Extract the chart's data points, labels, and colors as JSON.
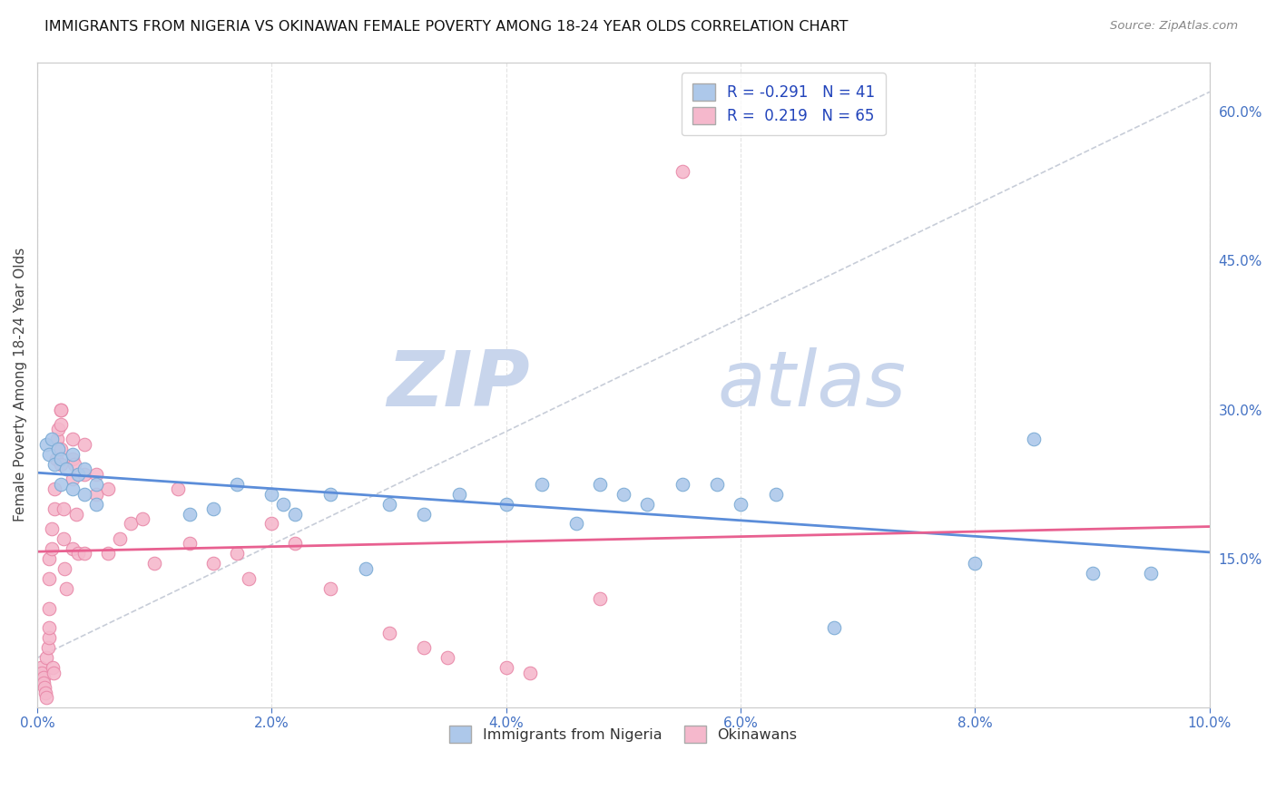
{
  "title": "IMMIGRANTS FROM NIGERIA VS OKINAWAN FEMALE POVERTY AMONG 18-24 YEAR OLDS CORRELATION CHART",
  "source": "Source: ZipAtlas.com",
  "ylabel": "Female Poverty Among 18-24 Year Olds",
  "right_yticks": [
    0.15,
    0.3,
    0.45,
    0.6
  ],
  "right_yticklabels": [
    "15.0%",
    "30.0%",
    "45.0%",
    "60.0%"
  ],
  "xmin": 0.0,
  "xmax": 0.1,
  "ymin": 0.0,
  "ymax": 0.65,
  "blue_R": -0.291,
  "blue_N": 41,
  "pink_R": 0.219,
  "pink_N": 65,
  "blue_color": "#adc8ea",
  "blue_edge": "#7aaad4",
  "blue_line_color": "#5b8dd9",
  "pink_color": "#f5b8cc",
  "pink_edge": "#e888a8",
  "pink_line_color": "#e86090",
  "watermark_zip": "ZIP",
  "watermark_atlas": "atlas",
  "watermark_color": "#ccd9f0",
  "bg_color": "#ffffff",
  "grid_color": "#dddddd",
  "legend_blue_label": "Immigrants from Nigeria",
  "legend_pink_label": "Okinawans",
  "blue_scatter_x": [
    0.0008,
    0.001,
    0.0012,
    0.0015,
    0.0018,
    0.002,
    0.002,
    0.0025,
    0.003,
    0.003,
    0.0035,
    0.004,
    0.004,
    0.005,
    0.005,
    0.013,
    0.015,
    0.017,
    0.02,
    0.021,
    0.022,
    0.025,
    0.028,
    0.03,
    0.033,
    0.036,
    0.04,
    0.043,
    0.046,
    0.048,
    0.05,
    0.052,
    0.055,
    0.058,
    0.06,
    0.063,
    0.068,
    0.08,
    0.085,
    0.09,
    0.095
  ],
  "blue_scatter_y": [
    0.265,
    0.255,
    0.27,
    0.245,
    0.26,
    0.25,
    0.225,
    0.24,
    0.255,
    0.22,
    0.235,
    0.24,
    0.215,
    0.225,
    0.205,
    0.195,
    0.2,
    0.225,
    0.215,
    0.205,
    0.195,
    0.215,
    0.14,
    0.205,
    0.195,
    0.215,
    0.205,
    0.225,
    0.185,
    0.225,
    0.215,
    0.205,
    0.225,
    0.225,
    0.205,
    0.215,
    0.08,
    0.145,
    0.27,
    0.135,
    0.135
  ],
  "pink_scatter_x": [
    0.0003,
    0.0004,
    0.0005,
    0.0005,
    0.0006,
    0.0007,
    0.0008,
    0.0008,
    0.0009,
    0.001,
    0.001,
    0.001,
    0.001,
    0.001,
    0.0012,
    0.0012,
    0.0013,
    0.0014,
    0.0015,
    0.0015,
    0.0016,
    0.0017,
    0.0018,
    0.002,
    0.002,
    0.002,
    0.002,
    0.002,
    0.0022,
    0.0022,
    0.0023,
    0.0025,
    0.003,
    0.003,
    0.003,
    0.003,
    0.0032,
    0.0033,
    0.0035,
    0.004,
    0.004,
    0.004,
    0.005,
    0.005,
    0.006,
    0.006,
    0.007,
    0.008,
    0.009,
    0.01,
    0.012,
    0.013,
    0.015,
    0.017,
    0.018,
    0.02,
    0.022,
    0.025,
    0.03,
    0.033,
    0.035,
    0.04,
    0.042,
    0.048,
    0.055
  ],
  "pink_scatter_y": [
    0.04,
    0.035,
    0.03,
    0.025,
    0.02,
    0.015,
    0.01,
    0.05,
    0.06,
    0.07,
    0.08,
    0.1,
    0.13,
    0.15,
    0.16,
    0.18,
    0.04,
    0.035,
    0.2,
    0.22,
    0.25,
    0.27,
    0.28,
    0.245,
    0.285,
    0.3,
    0.3,
    0.26,
    0.2,
    0.17,
    0.14,
    0.12,
    0.27,
    0.25,
    0.23,
    0.16,
    0.245,
    0.195,
    0.155,
    0.265,
    0.235,
    0.155,
    0.235,
    0.215,
    0.22,
    0.155,
    0.17,
    0.185,
    0.19,
    0.145,
    0.22,
    0.165,
    0.145,
    0.155,
    0.13,
    0.185,
    0.165,
    0.12,
    0.075,
    0.06,
    0.05,
    0.04,
    0.035,
    0.11,
    0.54
  ]
}
